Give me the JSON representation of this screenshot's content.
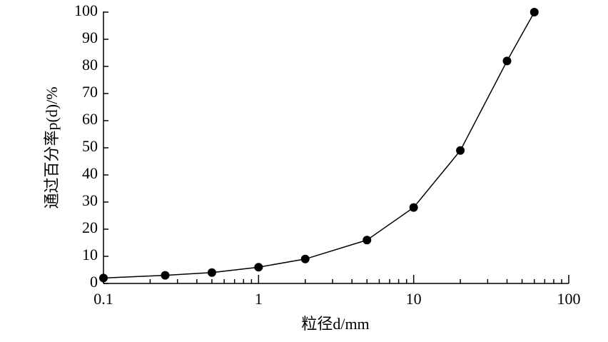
{
  "chart_data": {
    "type": "line",
    "x_label": "粒径d/mm",
    "y_label": "通过百分率p(d)/%",
    "x": [
      0.1,
      0.25,
      0.5,
      1,
      2,
      5,
      10,
      20,
      40,
      60
    ],
    "series": [
      {
        "color": "#000000",
        "values": [
          2,
          3,
          4,
          6,
          9,
          16,
          28,
          49,
          82,
          100
        ]
      }
    ],
    "xscale": "log",
    "xlim": [
      0.1,
      100
    ],
    "xticks": [
      0.1,
      1,
      10,
      100
    ],
    "xminorticks": [
      0.2,
      0.3,
      0.4,
      0.5,
      0.6,
      0.7,
      0.8,
      0.9,
      2,
      3,
      4,
      5,
      6,
      7,
      8,
      9,
      20,
      30,
      40,
      50,
      60,
      70,
      80,
      90
    ],
    "ylim": [
      0,
      100
    ],
    "yticks": [
      0,
      10,
      20,
      30,
      40,
      50,
      60,
      70,
      80,
      90,
      100
    ]
  }
}
